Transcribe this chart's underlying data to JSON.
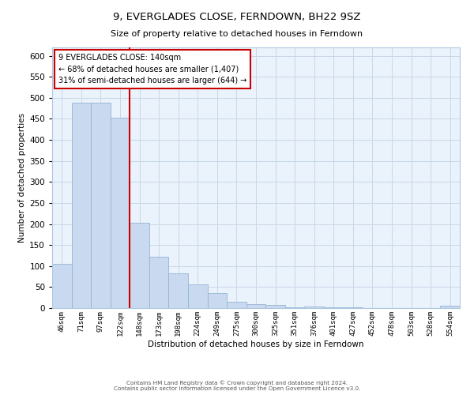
{
  "title": "9, EVERGLADES CLOSE, FERNDOWN, BH22 9SZ",
  "subtitle": "Size of property relative to detached houses in Ferndown",
  "xlabel": "Distribution of detached houses by size in Ferndown",
  "ylabel": "Number of detached properties",
  "bar_labels": [
    "46sqm",
    "71sqm",
    "97sqm",
    "122sqm",
    "148sqm",
    "173sqm",
    "198sqm",
    "224sqm",
    "249sqm",
    "275sqm",
    "300sqm",
    "325sqm",
    "351sqm",
    "376sqm",
    "401sqm",
    "427sqm",
    "452sqm",
    "478sqm",
    "503sqm",
    "528sqm",
    "554sqm"
  ],
  "bar_values": [
    105,
    488,
    488,
    452,
    202,
    122,
    82,
    56,
    36,
    15,
    9,
    7,
    2,
    4,
    1,
    1,
    0,
    0,
    0,
    0,
    5
  ],
  "bar_color": "#c9daf0",
  "bar_edge_color": "#94b4d4",
  "vline_x_index": 3,
  "vline_color": "#cc0000",
  "annotation_title": "9 EVERGLADES CLOSE: 140sqm",
  "annotation_line1": "← 68% of detached houses are smaller (1,407)",
  "annotation_line2": "31% of semi-detached houses are larger (644) →",
  "annotation_box_edge": "#cc0000",
  "ylim": [
    0,
    620
  ],
  "yticks": [
    0,
    50,
    100,
    150,
    200,
    250,
    300,
    350,
    400,
    450,
    500,
    550,
    600
  ],
  "footer_line1": "Contains HM Land Registry data © Crown copyright and database right 2024.",
  "footer_line2": "Contains public sector information licensed under the Open Government Licence v3.0.",
  "grid_color": "#c8d8e8",
  "bg_color": "#eaf2fb",
  "title_fontsize": 9.5,
  "subtitle_fontsize": 8,
  "ylabel_fontsize": 7.5,
  "xlabel_fontsize": 7.5,
  "ytick_fontsize": 7.5,
  "xtick_fontsize": 6.5
}
